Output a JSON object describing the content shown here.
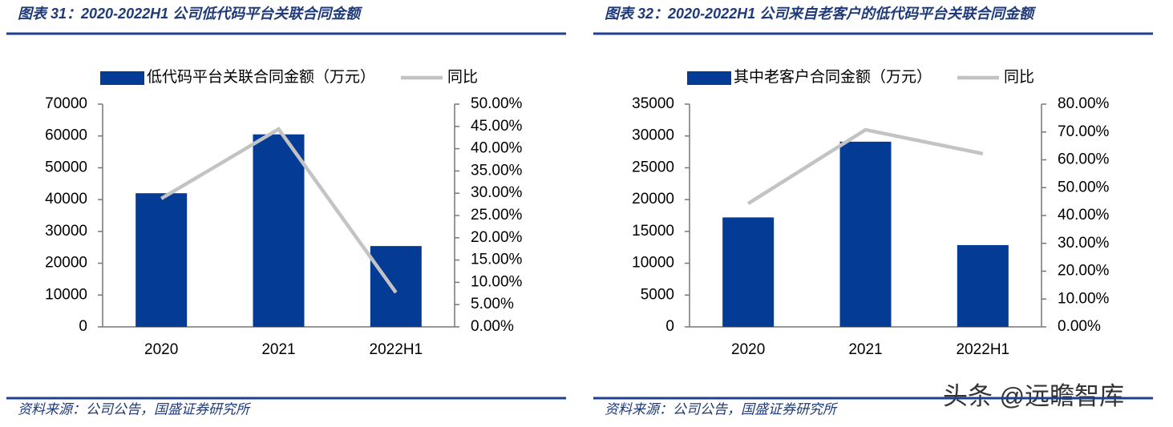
{
  "chart_data": [
    {
      "type": "combo",
      "title": "图表 31：2020-2022H1 公司低代码平台关联合同金额",
      "source": "资料来源：公司公告，国盛证券研究所",
      "categories": [
        "2020",
        "2021",
        "2022H1"
      ],
      "series": [
        {
          "name": "低代码平台关联合同金额（万元）",
          "type": "bar",
          "color": "#033b95",
          "values": [
            42000,
            60500,
            25400
          ]
        },
        {
          "name": "同比",
          "type": "line",
          "axis": "y2",
          "color": "#c3c3c3",
          "values": [
            28.8,
            44.4,
            7.7
          ]
        }
      ],
      "ylim": [
        0,
        70000
      ],
      "yticks": [
        0,
        10000,
        20000,
        30000,
        40000,
        50000,
        60000,
        70000
      ],
      "y2lim": [
        0,
        50
      ],
      "y2ticks": [
        {
          "value": 0,
          "label": "0.00%"
        },
        {
          "value": 5,
          "label": "5.00%"
        },
        {
          "value": 10,
          "label": "10.00%"
        },
        {
          "value": 15,
          "label": "15.00%"
        },
        {
          "value": 20,
          "label": "20.00%"
        },
        {
          "value": 25,
          "label": "25.00%"
        },
        {
          "value": 30,
          "label": "30.00%"
        },
        {
          "value": 35,
          "label": "35.00%"
        },
        {
          "value": 40,
          "label": "40.00%"
        },
        {
          "value": 45,
          "label": "45.00%"
        },
        {
          "value": 50,
          "label": "50.00%"
        }
      ]
    },
    {
      "type": "combo",
      "title": "图表 32：2020-2022H1 公司来自老客户的低代码平台关联合同金额",
      "source": "资料来源：公司公告，国盛证券研究所",
      "categories": [
        "2020",
        "2021",
        "2022H1"
      ],
      "series": [
        {
          "name": "其中老客户合同金额（万元）",
          "type": "bar",
          "color": "#033b95",
          "values": [
            17200,
            29100,
            12850
          ]
        },
        {
          "name": "同比",
          "type": "line",
          "axis": "y2",
          "color": "#c3c3c3",
          "values": [
            44.3,
            70.8,
            62.2
          ]
        }
      ],
      "ylim": [
        0,
        35000
      ],
      "yticks": [
        0,
        5000,
        10000,
        15000,
        20000,
        25000,
        30000,
        35000
      ],
      "y2lim": [
        0,
        80
      ],
      "y2ticks": [
        {
          "value": 0,
          "label": "0.00%"
        },
        {
          "value": 10,
          "label": "10.00%"
        },
        {
          "value": 20,
          "label": "20.00%"
        },
        {
          "value": 30,
          "label": "30.00%"
        },
        {
          "value": 40,
          "label": "40.00%"
        },
        {
          "value": 50,
          "label": "50.00%"
        },
        {
          "value": 60,
          "label": "60.00%"
        },
        {
          "value": 70,
          "label": "70.00%"
        },
        {
          "value": 80,
          "label": "80.00%"
        }
      ]
    }
  ],
  "watermark": "头条 @远瞻智库"
}
